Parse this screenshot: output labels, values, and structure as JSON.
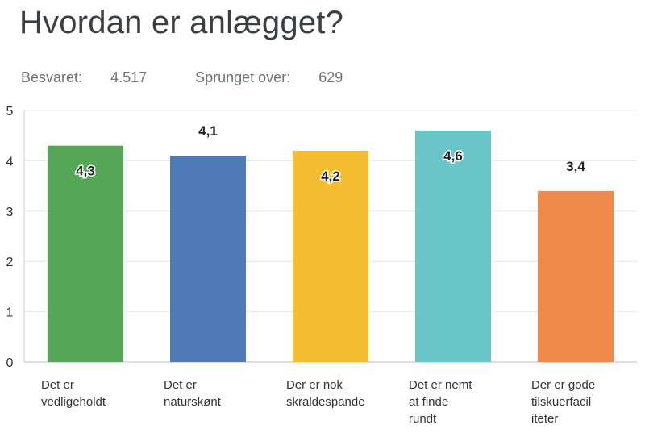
{
  "title": "Hvordan er anlægget?",
  "stats": {
    "answered_label": "Besvaret:",
    "answered_value": "4.517",
    "skipped_label": "Sprunget over:",
    "skipped_value": "629"
  },
  "chart_data": {
    "type": "bar",
    "title": "Hvordan er anlægget?",
    "categories": [
      [
        "Det er",
        "vedligeholdt"
      ],
      [
        "Det er",
        "naturskønt"
      ],
      [
        "Der er nok",
        "skraldespande"
      ],
      [
        "Det er nemt",
        "at finde",
        "rundt"
      ],
      [
        "Der er gode",
        "tilskuerfacil",
        "iteter"
      ]
    ],
    "values": [
      4.3,
      4.1,
      4.2,
      4.6,
      3.4
    ],
    "data_labels": [
      "4,3",
      "4,1",
      "4,2",
      "4,6",
      "3,4"
    ],
    "colors": [
      "#56a756",
      "#4e7ab8",
      "#f5bd32",
      "#6ac5c8",
      "#f0894a"
    ],
    "yticks": [
      0,
      1,
      2,
      3,
      4,
      5
    ],
    "ylim": [
      0,
      5
    ],
    "grid": true,
    "xlabel": "",
    "ylabel": ""
  }
}
